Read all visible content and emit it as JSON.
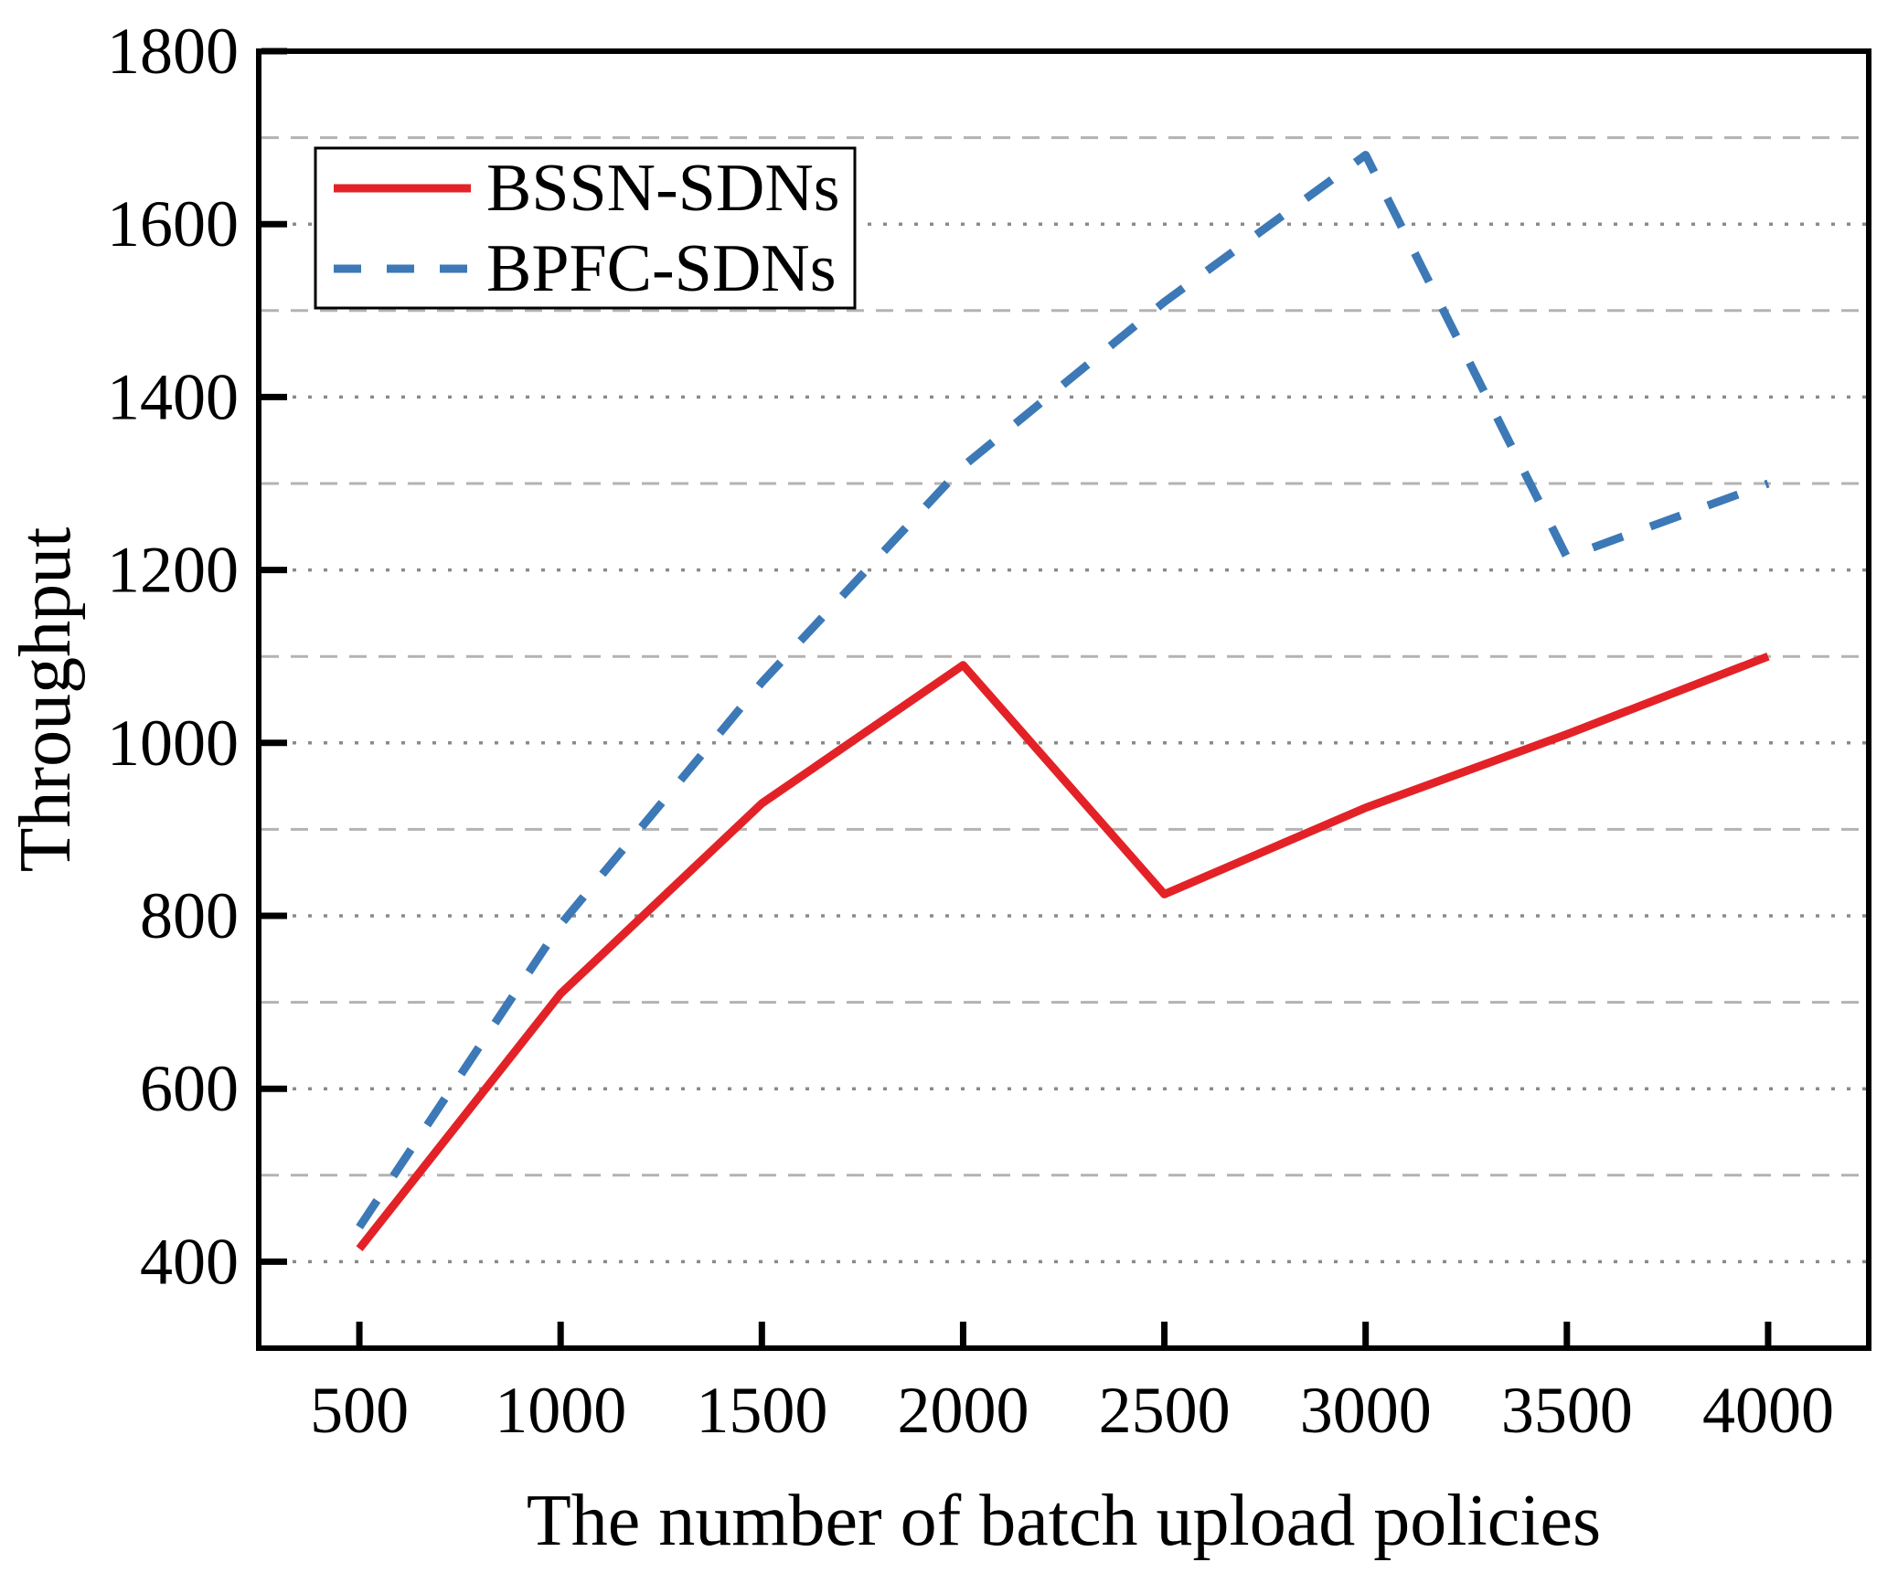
{
  "figure": {
    "background": "#ffffff",
    "axis_color": "#000000"
  },
  "chart_data": {
    "type": "line",
    "title": "",
    "xlabel": "The number of batch upload policies",
    "ylabel": "Throughput",
    "x": [
      500,
      1000,
      1500,
      2000,
      2500,
      3000,
      3500,
      4000
    ],
    "series": [
      {
        "name": "BSSN-SDNs",
        "dash": "solid",
        "color": "#e32227",
        "values": [
          415,
          710,
          930,
          1090,
          825,
          925,
          1010,
          1100
        ]
      },
      {
        "name": "BPFC-SDNs",
        "dash": "dashed",
        "color": "#3c79b6",
        "values": [
          440,
          790,
          1070,
          1320,
          1510,
          1680,
          1215,
          1300
        ]
      }
    ],
    "xlim": [
      250,
      4250
    ],
    "ylim": [
      300,
      1800
    ],
    "xticks": [
      500,
      1000,
      1500,
      2000,
      2500,
      3000,
      3500,
      4000
    ],
    "yticks": [
      400,
      600,
      800,
      1000,
      1200,
      1400,
      1600,
      1800
    ],
    "grid": {
      "vertical": "off",
      "major_style": "dotted",
      "minor_style": "dashed",
      "minor_interval": 100,
      "major_color": "#8a8a8a",
      "minor_color": "#b3b3b3"
    },
    "legend_position": "upper-left"
  }
}
